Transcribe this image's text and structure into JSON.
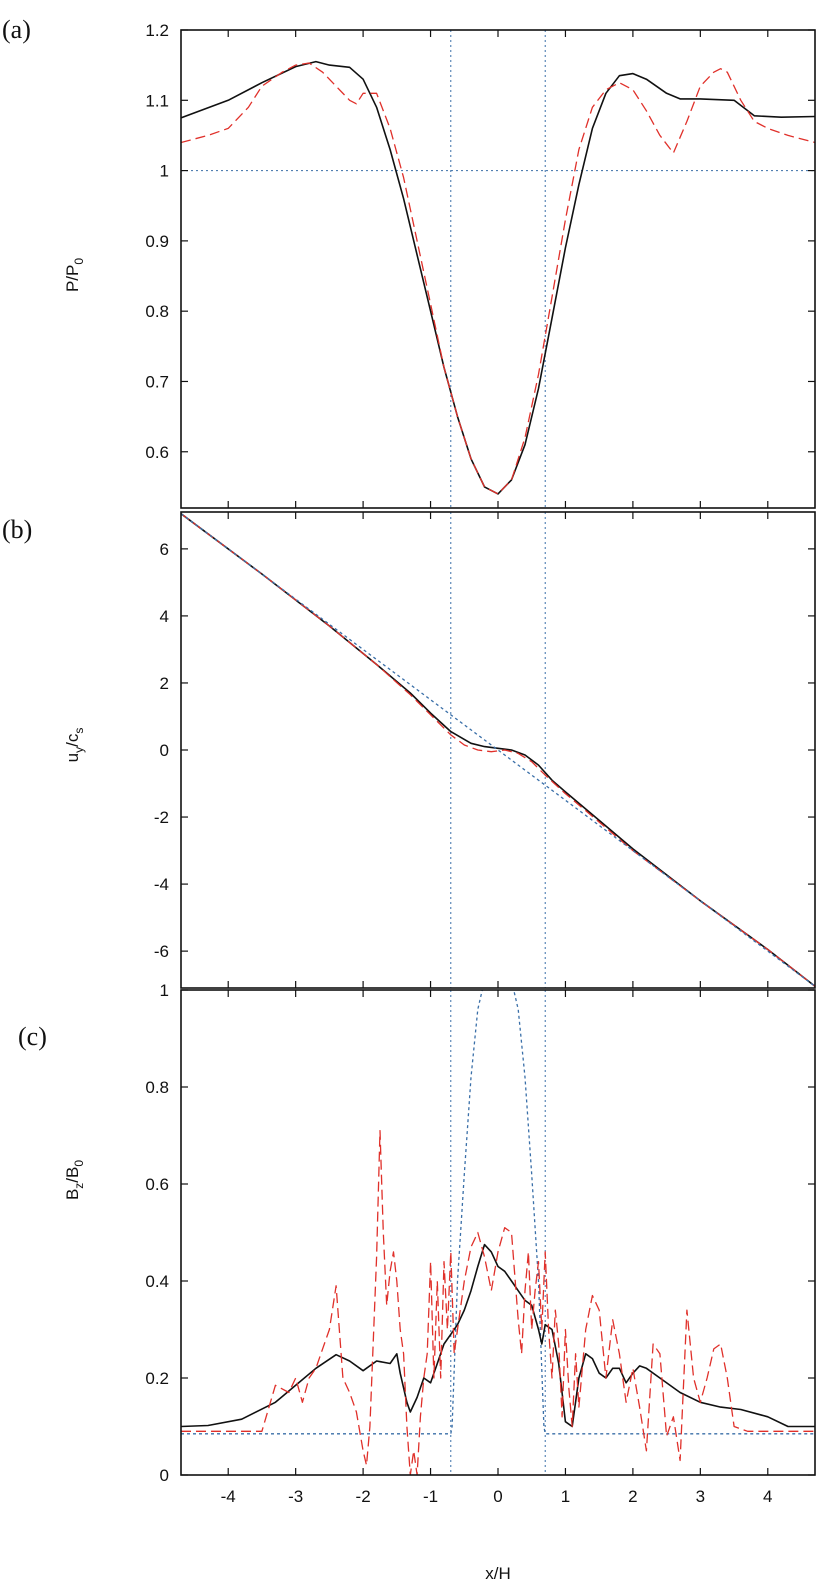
{
  "chart_data": [
    {
      "type": "line",
      "panel": "(a)",
      "xlabel": "",
      "ylabel": {
        "main": "P/P",
        "sub": "0"
      },
      "xlim": [
        -4.7,
        4.7
      ],
      "ylim": [
        0.52,
        1.2
      ],
      "yticks": [
        0.6,
        0.7,
        0.8,
        0.9,
        1.0,
        1.1,
        1.2
      ],
      "ytick_labels": [
        "0.6",
        "0.7",
        "0.8",
        "0.9",
        "1",
        "1.1",
        "1.2"
      ],
      "xticks": [
        -4,
        -3,
        -2,
        -1,
        0,
        1,
        2,
        3,
        4
      ],
      "xtick_labels": [],
      "grid": false,
      "reference_lines": {
        "vertical": [
          -0.7,
          0.7
        ],
        "horizontal": [
          1.0
        ]
      },
      "series": [
        {
          "color": "#111111",
          "style": "solid",
          "x": [
            -4.7,
            -4.0,
            -3.5,
            -3.0,
            -2.7,
            -2.5,
            -2.2,
            -2.0,
            -1.8,
            -1.6,
            -1.4,
            -1.2,
            -1.0,
            -0.8,
            -0.6,
            -0.4,
            -0.2,
            0.0,
            0.2,
            0.4,
            0.6,
            0.8,
            1.0,
            1.2,
            1.4,
            1.6,
            1.8,
            2.0,
            2.2,
            2.5,
            2.7,
            3.0,
            3.5,
            3.8,
            4.2,
            4.7
          ],
          "y": [
            1.075,
            1.1,
            1.125,
            1.148,
            1.155,
            1.15,
            1.147,
            1.13,
            1.09,
            1.03,
            0.96,
            0.88,
            0.8,
            0.72,
            0.65,
            0.59,
            0.55,
            0.54,
            0.56,
            0.61,
            0.69,
            0.79,
            0.89,
            0.98,
            1.06,
            1.11,
            1.135,
            1.138,
            1.13,
            1.11,
            1.102,
            1.102,
            1.1,
            1.078,
            1.076,
            1.077
          ]
        },
        {
          "color": "#e0302a",
          "style": "dashed",
          "x": [
            -4.7,
            -4.3,
            -4.0,
            -3.7,
            -3.5,
            -3.2,
            -3.0,
            -2.8,
            -2.6,
            -2.4,
            -2.2,
            -2.1,
            -2.0,
            -1.9,
            -1.8,
            -1.6,
            -1.4,
            -1.2,
            -1.0,
            -0.8,
            -0.6,
            -0.4,
            -0.2,
            0.0,
            0.2,
            0.4,
            0.6,
            0.8,
            1.0,
            1.2,
            1.4,
            1.6,
            1.7,
            1.8,
            2.0,
            2.2,
            2.4,
            2.6,
            2.8,
            3.0,
            3.2,
            3.3,
            3.4,
            3.6,
            3.8,
            4.0,
            4.3,
            4.7
          ],
          "y": [
            1.04,
            1.05,
            1.06,
            1.09,
            1.12,
            1.14,
            1.15,
            1.153,
            1.14,
            1.12,
            1.1,
            1.095,
            1.11,
            1.11,
            1.11,
            1.06,
            0.99,
            0.9,
            0.81,
            0.72,
            0.65,
            0.59,
            0.55,
            0.54,
            0.56,
            0.62,
            0.71,
            0.82,
            0.93,
            1.03,
            1.09,
            1.115,
            1.12,
            1.125,
            1.115,
            1.085,
            1.05,
            1.025,
            1.07,
            1.12,
            1.14,
            1.145,
            1.14,
            1.1,
            1.07,
            1.06,
            1.05,
            1.04
          ]
        }
      ]
    },
    {
      "type": "line",
      "panel": "(b)",
      "xlabel": "",
      "ylabel": {
        "main": "u",
        "sub": "y",
        "main2": "/c",
        "sub2": "s"
      },
      "xlim": [
        -4.7,
        4.7
      ],
      "ylim": [
        -7.1,
        7.1
      ],
      "yticks": [
        -6,
        -4,
        -2,
        0,
        2,
        4,
        6
      ],
      "ytick_labels": [
        "-6",
        "-4",
        "-2",
        "0",
        "2",
        "4",
        "6"
      ],
      "xticks": [
        -4,
        -3,
        -2,
        -1,
        0,
        1,
        2,
        3,
        4
      ],
      "xtick_labels": [],
      "grid": false,
      "reference_lines": {
        "vertical": [
          -0.7,
          0.7
        ],
        "horizontal": []
      },
      "series": [
        {
          "color": "#111111",
          "style": "solid",
          "x": [
            -4.7,
            -3.5,
            -2.5,
            -1.8,
            -1.3,
            -1.0,
            -0.7,
            -0.4,
            -0.2,
            0.0,
            0.2,
            0.4,
            0.6,
            0.8,
            1.0,
            1.5,
            2.0,
            3.0,
            4.0,
            4.7
          ],
          "y": [
            7.05,
            5.25,
            3.7,
            2.55,
            1.7,
            1.1,
            0.55,
            0.2,
            0.1,
            0.05,
            0.0,
            -0.15,
            -0.45,
            -0.9,
            -1.25,
            -2.1,
            -2.95,
            -4.5,
            -5.95,
            -7.05
          ]
        },
        {
          "color": "#e0302a",
          "style": "dashed",
          "x": [
            -4.7,
            -3.5,
            -2.5,
            -1.8,
            -1.3,
            -1.0,
            -0.7,
            -0.5,
            -0.3,
            -0.1,
            0.1,
            0.3,
            0.5,
            0.7,
            1.0,
            1.5,
            2.0,
            3.0,
            4.0,
            4.7
          ],
          "y": [
            7.05,
            5.25,
            3.7,
            2.55,
            1.65,
            1.05,
            0.45,
            0.15,
            0.0,
            -0.05,
            0.0,
            -0.1,
            -0.35,
            -0.75,
            -1.3,
            -2.15,
            -3.0,
            -4.5,
            -5.95,
            -7.05
          ]
        },
        {
          "color": "#3a6fa8",
          "style": "dotted",
          "x": [
            -4.7,
            4.7
          ],
          "y": [
            7.05,
            -7.05
          ]
        }
      ]
    },
    {
      "type": "line",
      "panel": "(c)",
      "xlabel": "x/H",
      "ylabel": {
        "main": "B",
        "sub": "z",
        "main2": "/B",
        "sub2": "0"
      },
      "xlim": [
        -4.7,
        4.7
      ],
      "ylim": [
        0,
        1.0
      ],
      "yticks": [
        0,
        0.2,
        0.4,
        0.6,
        0.8,
        1.0
      ],
      "ytick_labels": [
        "0",
        "0.2",
        "0.4",
        "0.6",
        "0.8",
        "1"
      ],
      "xticks": [
        -4,
        -3,
        -2,
        -1,
        0,
        1,
        2,
        3,
        4
      ],
      "xtick_labels": [
        "-4",
        "-3",
        "-2",
        "-1",
        "0",
        "1",
        "2",
        "3",
        "4"
      ],
      "grid": false,
      "reference_lines": {
        "vertical": [
          -0.7,
          0.7
        ],
        "horizontal": []
      },
      "series": [
        {
          "color": "#3a6fa8",
          "style": "dotted",
          "x": [
            -4.7,
            -0.7,
            -0.68,
            -0.6,
            -0.5,
            -0.4,
            -0.3,
            -0.2,
            -0.1,
            0.0,
            0.1,
            0.2,
            0.3,
            0.4,
            0.5,
            0.6,
            0.68,
            0.7,
            4.7
          ],
          "y": [
            0.085,
            0.085,
            0.1,
            0.4,
            0.62,
            0.82,
            0.96,
            1.02,
            1.05,
            1.06,
            1.05,
            1.02,
            0.96,
            0.82,
            0.62,
            0.4,
            0.1,
            0.085,
            0.085
          ]
        },
        {
          "color": "#111111",
          "style": "solid",
          "x": [
            -4.7,
            -4.3,
            -3.8,
            -3.3,
            -3.0,
            -2.7,
            -2.4,
            -2.2,
            -2.0,
            -1.8,
            -1.6,
            -1.5,
            -1.45,
            -1.35,
            -1.3,
            -1.2,
            -1.1,
            -1.0,
            -0.9,
            -0.8,
            -0.7,
            -0.6,
            -0.5,
            -0.4,
            -0.3,
            -0.2,
            -0.1,
            0.0,
            0.1,
            0.2,
            0.3,
            0.4,
            0.5,
            0.6,
            0.65,
            0.7,
            0.8,
            0.9,
            1.0,
            1.1,
            1.2,
            1.3,
            1.4,
            1.5,
            1.6,
            1.7,
            1.8,
            1.9,
            2.0,
            2.1,
            2.2,
            2.4,
            2.7,
            3.0,
            3.3,
            3.6,
            4.0,
            4.3,
            4.7
          ],
          "y": [
            0.1,
            0.102,
            0.115,
            0.15,
            0.185,
            0.22,
            0.248,
            0.235,
            0.215,
            0.235,
            0.23,
            0.25,
            0.21,
            0.15,
            0.13,
            0.16,
            0.2,
            0.19,
            0.23,
            0.27,
            0.29,
            0.31,
            0.34,
            0.38,
            0.43,
            0.475,
            0.46,
            0.43,
            0.42,
            0.4,
            0.38,
            0.36,
            0.35,
            0.3,
            0.27,
            0.31,
            0.3,
            0.23,
            0.11,
            0.1,
            0.2,
            0.25,
            0.24,
            0.21,
            0.2,
            0.22,
            0.22,
            0.19,
            0.21,
            0.225,
            0.22,
            0.2,
            0.17,
            0.15,
            0.14,
            0.135,
            0.12,
            0.1,
            0.1
          ]
        },
        {
          "color": "#e0302a",
          "style": "dashed",
          "x": [
            -4.7,
            -3.5,
            -3.3,
            -3.1,
            -3.0,
            -2.9,
            -2.8,
            -2.7,
            -2.6,
            -2.5,
            -2.4,
            -2.3,
            -2.2,
            -2.1,
            -2.0,
            -1.95,
            -1.9,
            -1.8,
            -1.75,
            -1.7,
            -1.65,
            -1.6,
            -1.55,
            -1.5,
            -1.45,
            -1.4,
            -1.35,
            -1.3,
            -1.25,
            -1.2,
            -1.15,
            -1.1,
            -1.05,
            -1.0,
            -0.95,
            -0.9,
            -0.85,
            -0.8,
            -0.75,
            -0.7,
            -0.65,
            -0.6,
            -0.5,
            -0.4,
            -0.3,
            -0.2,
            -0.1,
            0.0,
            0.1,
            0.2,
            0.3,
            0.35,
            0.4,
            0.45,
            0.5,
            0.55,
            0.6,
            0.65,
            0.7,
            0.75,
            0.8,
            0.85,
            0.9,
            0.95,
            1.0,
            1.05,
            1.1,
            1.15,
            1.2,
            1.3,
            1.4,
            1.5,
            1.6,
            1.7,
            1.8,
            1.9,
            2.0,
            2.1,
            2.2,
            2.3,
            2.4,
            2.5,
            2.6,
            2.7,
            2.8,
            2.9,
            3.0,
            3.1,
            3.2,
            3.3,
            3.4,
            3.5,
            3.7,
            4.0,
            4.7
          ],
          "y": [
            0.09,
            0.09,
            0.185,
            0.17,
            0.2,
            0.15,
            0.2,
            0.22,
            0.26,
            0.3,
            0.39,
            0.2,
            0.17,
            0.13,
            0.05,
            0.02,
            0.1,
            0.45,
            0.71,
            0.5,
            0.35,
            0.42,
            0.46,
            0.4,
            0.3,
            0.25,
            0.1,
            0.0,
            0.05,
            0.0,
            0.12,
            0.2,
            0.25,
            0.44,
            0.2,
            0.4,
            0.2,
            0.44,
            0.3,
            0.46,
            0.25,
            0.3,
            0.4,
            0.47,
            0.5,
            0.45,
            0.38,
            0.46,
            0.51,
            0.5,
            0.32,
            0.25,
            0.38,
            0.46,
            0.3,
            0.38,
            0.44,
            0.3,
            0.46,
            0.3,
            0.2,
            0.34,
            0.27,
            0.12,
            0.3,
            0.18,
            0.1,
            0.25,
            0.14,
            0.3,
            0.37,
            0.34,
            0.2,
            0.32,
            0.25,
            0.15,
            0.22,
            0.14,
            0.05,
            0.27,
            0.25,
            0.08,
            0.12,
            0.03,
            0.34,
            0.2,
            0.15,
            0.2,
            0.26,
            0.27,
            0.2,
            0.1,
            0.09,
            0.09,
            0.09
          ]
        }
      ]
    }
  ]
}
